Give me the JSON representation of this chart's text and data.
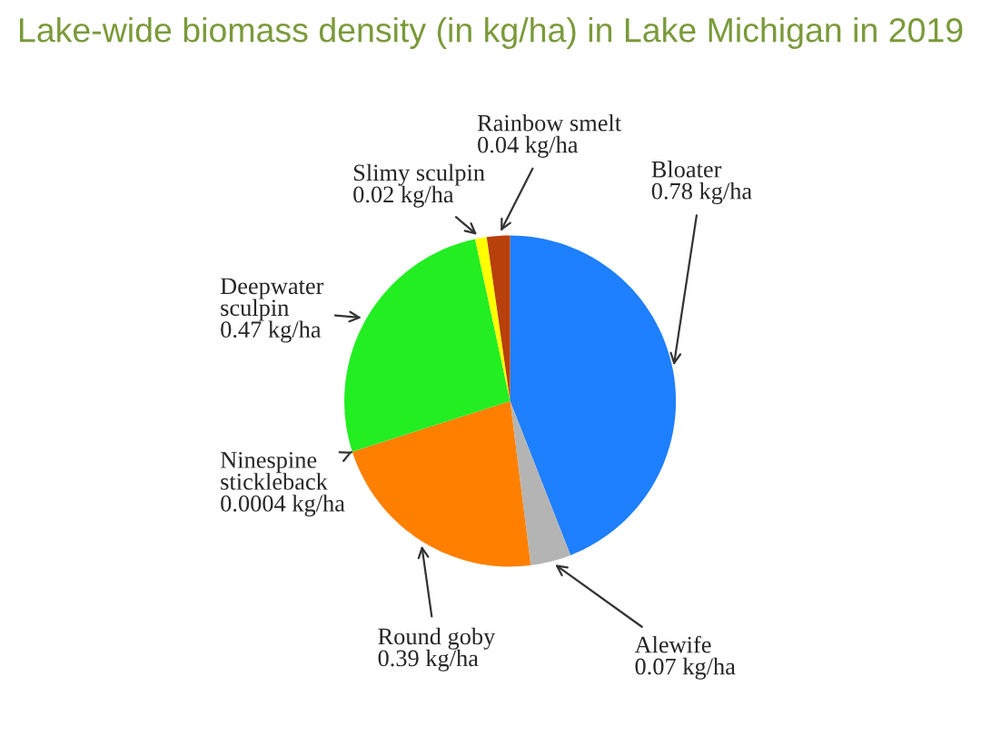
{
  "chart_data": {
    "type": "pie",
    "title": "Lake-wide biomass density (in kg/ha) in Lake Michigan in 2019",
    "categories": [
      "Bloater",
      "Alewife",
      "Round goby",
      "Ninespine stickleback",
      "Deepwater sculpin",
      "Slimy sculpin",
      "Rainbow smelt"
    ],
    "values": [
      0.78,
      0.07,
      0.39,
      0.0004,
      0.47,
      0.02,
      0.04
    ],
    "colors": [
      "#1e7fff",
      "#b4b4b4",
      "#ff8000",
      "#8a5a2b",
      "#22ee22",
      "#ffff00",
      "#b8400c"
    ],
    "value_labels": [
      "0.78 kg/ha",
      "0.07 kg/ha",
      "0.39 kg/ha",
      "0.0004 kg/ha",
      "0.47 kg/ha",
      "0.02 kg/ha",
      "0.04 kg/ha"
    ]
  }
}
